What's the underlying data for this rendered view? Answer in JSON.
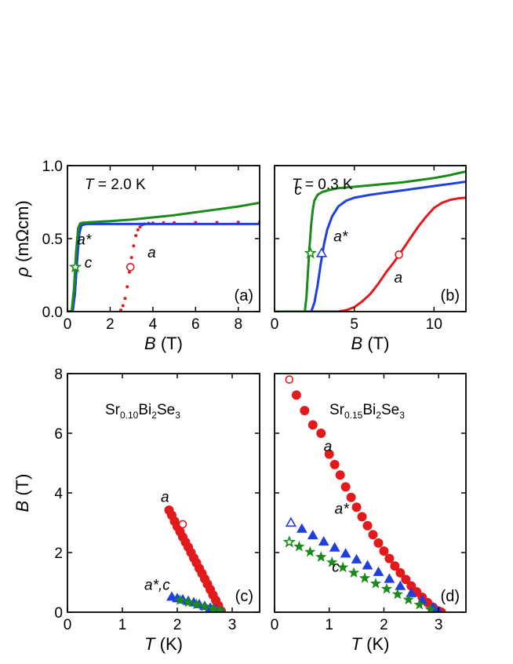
{
  "chart_data": [
    {
      "id": "a",
      "type": "line",
      "panel_tag": "(a)",
      "annotation": {
        "var": "T",
        "rest": " = 2.0 K"
      },
      "xlabel": {
        "var": "B",
        "unit": " (T)"
      },
      "ylabel": {
        "var": "ρ",
        "unit": " (mΩcm)"
      },
      "xlim": [
        0,
        9
      ],
      "ylim": [
        0,
        1.0
      ],
      "xticks": [
        0,
        2,
        4,
        6,
        8
      ],
      "yticks": [
        0.0,
        0.5,
        1.0
      ],
      "ytick_labels": [
        "0.0",
        "0.5",
        "1.0"
      ],
      "series": [
        {
          "label": "a",
          "color": "#e31a1c",
          "style": "dots",
          "x": [
            2.5,
            2.6,
            2.7,
            2.8,
            2.9,
            3.0,
            3.1,
            3.2,
            3.3,
            3.4,
            3.5,
            3.6,
            3.8,
            4.0,
            4.5,
            5.0,
            6.0,
            7.0,
            8.0,
            9.0
          ],
          "y": [
            0.01,
            0.04,
            0.09,
            0.17,
            0.27,
            0.37,
            0.45,
            0.52,
            0.56,
            0.58,
            0.595,
            0.6,
            0.605,
            0.607,
            0.608,
            0.609,
            0.61,
            0.611,
            0.612,
            0.613
          ]
        },
        {
          "label": "a*",
          "color": "#1f3fe0",
          "style": "line",
          "x": [
            0,
            0.25,
            0.35,
            0.45,
            0.55,
            0.65,
            0.8,
            1.0,
            2.0,
            4.0,
            6.0,
            9.0
          ],
          "y": [
            0,
            0.005,
            0.12,
            0.35,
            0.53,
            0.59,
            0.598,
            0.6,
            0.6,
            0.6,
            0.6,
            0.6
          ]
        },
        {
          "label": "c",
          "color": "#1a8a1a",
          "style": "line",
          "x": [
            0,
            0.2,
            0.3,
            0.4,
            0.5,
            0.6,
            0.8,
            1.0,
            2.0,
            3.0,
            4.0,
            5.0,
            6.0,
            7.0,
            8.0,
            9.0
          ],
          "y": [
            0,
            0.005,
            0.15,
            0.4,
            0.57,
            0.605,
            0.61,
            0.612,
            0.62,
            0.63,
            0.645,
            0.66,
            0.68,
            0.7,
            0.72,
            0.745
          ]
        }
      ],
      "markers": [
        {
          "series": "a",
          "x": 2.95,
          "y": 0.305,
          "shape": "circle-open"
        },
        {
          "series": "c",
          "x": 0.37,
          "y": 0.305,
          "shape": "star-open"
        }
      ],
      "curve_labels": [
        {
          "text": "a*",
          "x": 0.45,
          "y": 0.46
        },
        {
          "text": "c",
          "x": 0.8,
          "y": 0.3
        },
        {
          "text": "a",
          "x": 3.75,
          "y": 0.37
        }
      ]
    },
    {
      "id": "b",
      "type": "line",
      "panel_tag": "(b)",
      "annotation": {
        "var": "T",
        "rest": " = 0.3 K"
      },
      "xlabel": {
        "var": "B",
        "unit": " (T)"
      },
      "xlim": [
        0,
        12
      ],
      "ylim": [
        0,
        1.0
      ],
      "xticks": [
        0,
        5,
        10
      ],
      "series": [
        {
          "label": "a",
          "color": "#e31a1c",
          "style": "line",
          "x": [
            0,
            4.0,
            4.5,
            5.0,
            5.5,
            6.0,
            6.5,
            7.0,
            7.5,
            8.0,
            8.5,
            9.0,
            9.5,
            10.0,
            10.5,
            11.0,
            11.5,
            12.0
          ],
          "y": [
            0,
            0.0,
            0.01,
            0.03,
            0.07,
            0.12,
            0.19,
            0.27,
            0.34,
            0.42,
            0.5,
            0.58,
            0.65,
            0.71,
            0.745,
            0.765,
            0.775,
            0.78
          ]
        },
        {
          "label": "a*",
          "color": "#1f3fe0",
          "style": "line",
          "x": [
            0,
            2.3,
            2.5,
            2.7,
            2.9,
            3.1,
            3.3,
            3.6,
            4.0,
            4.5,
            5.0,
            6.0,
            7.0,
            8.0,
            9.0,
            10.0,
            11.0,
            12.0
          ],
          "y": [
            0,
            0.0,
            0.06,
            0.18,
            0.33,
            0.46,
            0.56,
            0.65,
            0.72,
            0.76,
            0.78,
            0.8,
            0.815,
            0.83,
            0.845,
            0.86,
            0.875,
            0.89
          ]
        },
        {
          "label": "c",
          "color": "#1a8a1a",
          "style": "line",
          "x": [
            0,
            1.9,
            2.0,
            2.1,
            2.2,
            2.3,
            2.4,
            2.5,
            2.7,
            3.0,
            3.5,
            4.0,
            5.0,
            6.0,
            7.0,
            8.0,
            9.0,
            10.0,
            11.0,
            12.0
          ],
          "y": [
            0,
            0.0,
            0.1,
            0.28,
            0.45,
            0.6,
            0.7,
            0.76,
            0.8,
            0.82,
            0.835,
            0.845,
            0.855,
            0.865,
            0.875,
            0.885,
            0.9,
            0.915,
            0.935,
            0.96
          ]
        }
      ],
      "markers": [
        {
          "series": "a",
          "x": 7.8,
          "y": 0.39,
          "shape": "circle-open"
        },
        {
          "series": "a*",
          "x": 2.95,
          "y": 0.4,
          "shape": "triangle-open"
        },
        {
          "series": "c",
          "x": 2.25,
          "y": 0.4,
          "shape": "star-open"
        }
      ],
      "curve_labels": [
        {
          "text": "c",
          "x": 1.25,
          "y": 0.8
        },
        {
          "text": "a*",
          "x": 3.7,
          "y": 0.48
        },
        {
          "text": "a",
          "x": 7.5,
          "y": 0.2
        }
      ]
    },
    {
      "id": "c",
      "type": "scatter",
      "panel_tag": "(c)",
      "formula": [
        "Sr",
        "0.10",
        "Bi",
        "2",
        "Se",
        "3"
      ],
      "xlabel": {
        "var": "T",
        "unit": " (K)"
      },
      "ylabel": {
        "var": "B",
        "unit": " (T)"
      },
      "xlim": [
        0,
        3.5
      ],
      "ylim": [
        0,
        8
      ],
      "xticks": [
        0,
        1,
        2,
        3
      ],
      "yticks": [
        0,
        2,
        4,
        6,
        8
      ],
      "series": [
        {
          "label": "a",
          "color": "#e31a1c",
          "marker": "circle",
          "x": [
            1.85,
            1.9,
            1.95,
            2.0,
            2.05,
            2.1,
            2.15,
            2.2,
            2.25,
            2.3,
            2.35,
            2.4,
            2.45,
            2.5,
            2.55,
            2.6,
            2.65,
            2.7,
            2.75,
            2.8
          ],
          "y": [
            3.42,
            3.25,
            3.05,
            2.87,
            2.7,
            2.52,
            2.35,
            2.18,
            2.0,
            1.82,
            1.65,
            1.47,
            1.3,
            1.12,
            0.94,
            0.76,
            0.58,
            0.4,
            0.22,
            0.04
          ]
        },
        {
          "label": "a*",
          "color": "#1f3fe0",
          "marker": "triangle",
          "x": [
            1.9,
            2.0,
            2.1,
            2.2,
            2.3,
            2.4,
            2.5,
            2.6,
            2.7,
            2.8
          ],
          "y": [
            0.52,
            0.47,
            0.43,
            0.38,
            0.33,
            0.27,
            0.21,
            0.15,
            0.09,
            0.03
          ]
        },
        {
          "label": "c",
          "color": "#1a8a1a",
          "marker": "star",
          "x": [
            2.05,
            2.2,
            2.35,
            2.5,
            2.65,
            2.78
          ],
          "y": [
            0.4,
            0.33,
            0.26,
            0.19,
            0.12,
            0.05
          ]
        }
      ],
      "open_markers": [
        {
          "series": "a",
          "x": 2.1,
          "y": 2.95,
          "shape": "circle-open"
        }
      ],
      "curve_labels": [
        {
          "text": "a",
          "x": 1.7,
          "y": 3.7
        },
        {
          "text": "a*,c",
          "x": 1.4,
          "y": 0.75
        }
      ]
    },
    {
      "id": "d",
      "type": "scatter",
      "panel_tag": "(d)",
      "formula": [
        "Sr",
        "0.15",
        "Bi",
        "2",
        "Se",
        "3"
      ],
      "xlabel": {
        "var": "T",
        "unit": " (K)"
      },
      "xlim": [
        0,
        3.5
      ],
      "ylim": [
        0,
        8
      ],
      "xticks": [
        0,
        1,
        2,
        3
      ],
      "series": [
        {
          "label": "a",
          "color": "#e31a1c",
          "marker": "circle",
          "x": [
            0.4,
            0.55,
            0.7,
            0.85,
            1.0,
            1.1,
            1.2,
            1.3,
            1.4,
            1.5,
            1.6,
            1.7,
            1.8,
            1.9,
            2.0,
            2.1,
            2.2,
            2.3,
            2.4,
            2.5,
            2.6,
            2.7,
            2.8,
            2.9,
            3.0,
            3.05
          ],
          "y": [
            7.28,
            6.76,
            6.28,
            6.0,
            5.3,
            4.95,
            4.6,
            4.2,
            3.85,
            3.52,
            3.2,
            2.9,
            2.6,
            2.32,
            2.05,
            1.8,
            1.55,
            1.32,
            1.1,
            0.88,
            0.68,
            0.5,
            0.32,
            0.16,
            0.04,
            0.0
          ]
        },
        {
          "label": "a*",
          "color": "#1f3fe0",
          "marker": "triangle",
          "x": [
            0.5,
            0.7,
            0.9,
            1.1,
            1.3,
            1.5,
            1.7,
            1.9,
            2.1,
            2.3,
            2.5,
            2.7,
            2.9,
            3.0
          ],
          "y": [
            2.8,
            2.58,
            2.37,
            2.17,
            1.97,
            1.77,
            1.57,
            1.35,
            1.12,
            0.88,
            0.64,
            0.4,
            0.17,
            0.04
          ]
        },
        {
          "label": "c",
          "color": "#1a8a1a",
          "marker": "star",
          "x": [
            0.45,
            0.65,
            0.85,
            1.05,
            1.25,
            1.45,
            1.65,
            1.85,
            2.05,
            2.25,
            2.45,
            2.65,
            2.85
          ],
          "y": [
            2.2,
            2.02,
            1.85,
            1.67,
            1.5,
            1.32,
            1.14,
            0.96,
            0.78,
            0.6,
            0.42,
            0.25,
            0.09
          ]
        }
      ],
      "open_markers": [
        {
          "series": "a",
          "x": 0.27,
          "y": 7.8,
          "shape": "circle-open"
        },
        {
          "series": "a*",
          "x": 0.3,
          "y": 3.0,
          "shape": "triangle-open"
        },
        {
          "series": "c",
          "x": 0.27,
          "y": 2.35,
          "shape": "star-open"
        }
      ],
      "curve_labels": [
        {
          "text": "a",
          "x": 0.9,
          "y": 5.4
        },
        {
          "text": "a*",
          "x": 1.1,
          "y": 3.3
        },
        {
          "text": "c",
          "x": 1.05,
          "y": 1.35
        }
      ]
    }
  ]
}
